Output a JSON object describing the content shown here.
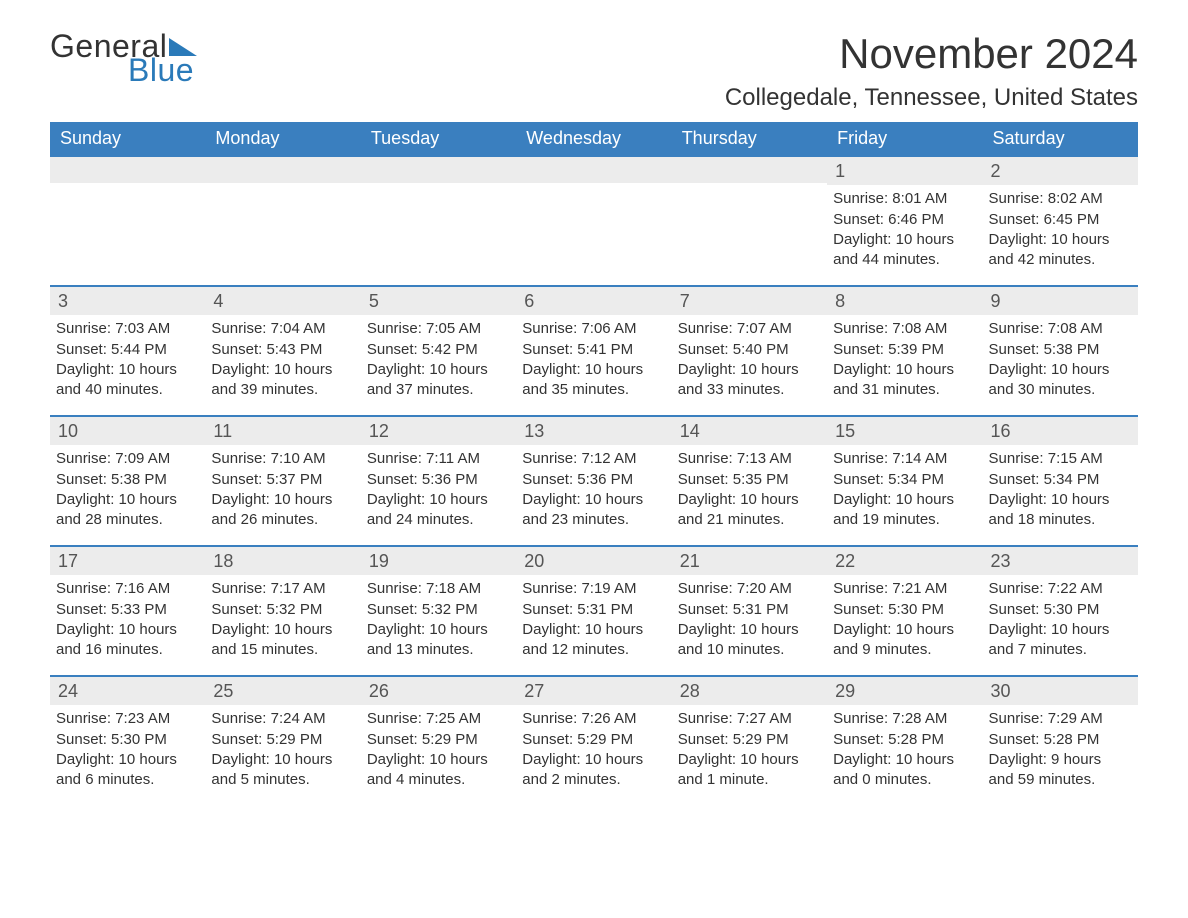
{
  "logo": {
    "word1": "General",
    "word2": "Blue"
  },
  "title": "November 2024",
  "location": "Collegedale, Tennessee, United States",
  "colors": {
    "header_bg": "#3a7fbf",
    "header_text": "#ffffff",
    "divider": "#3a7fbf",
    "daybar_bg": "#ececec",
    "text": "#333333",
    "logo_accent": "#2a7ab9"
  },
  "weekdays": [
    "Sunday",
    "Monday",
    "Tuesday",
    "Wednesday",
    "Thursday",
    "Friday",
    "Saturday"
  ],
  "weeks": [
    [
      null,
      null,
      null,
      null,
      null,
      {
        "n": "1",
        "sunrise": "Sunrise: 8:01 AM",
        "sunset": "Sunset: 6:46 PM",
        "day1": "Daylight: 10 hours",
        "day2": "and 44 minutes."
      },
      {
        "n": "2",
        "sunrise": "Sunrise: 8:02 AM",
        "sunset": "Sunset: 6:45 PM",
        "day1": "Daylight: 10 hours",
        "day2": "and 42 minutes."
      }
    ],
    [
      {
        "n": "3",
        "sunrise": "Sunrise: 7:03 AM",
        "sunset": "Sunset: 5:44 PM",
        "day1": "Daylight: 10 hours",
        "day2": "and 40 minutes."
      },
      {
        "n": "4",
        "sunrise": "Sunrise: 7:04 AM",
        "sunset": "Sunset: 5:43 PM",
        "day1": "Daylight: 10 hours",
        "day2": "and 39 minutes."
      },
      {
        "n": "5",
        "sunrise": "Sunrise: 7:05 AM",
        "sunset": "Sunset: 5:42 PM",
        "day1": "Daylight: 10 hours",
        "day2": "and 37 minutes."
      },
      {
        "n": "6",
        "sunrise": "Sunrise: 7:06 AM",
        "sunset": "Sunset: 5:41 PM",
        "day1": "Daylight: 10 hours",
        "day2": "and 35 minutes."
      },
      {
        "n": "7",
        "sunrise": "Sunrise: 7:07 AM",
        "sunset": "Sunset: 5:40 PM",
        "day1": "Daylight: 10 hours",
        "day2": "and 33 minutes."
      },
      {
        "n": "8",
        "sunrise": "Sunrise: 7:08 AM",
        "sunset": "Sunset: 5:39 PM",
        "day1": "Daylight: 10 hours",
        "day2": "and 31 minutes."
      },
      {
        "n": "9",
        "sunrise": "Sunrise: 7:08 AM",
        "sunset": "Sunset: 5:38 PM",
        "day1": "Daylight: 10 hours",
        "day2": "and 30 minutes."
      }
    ],
    [
      {
        "n": "10",
        "sunrise": "Sunrise: 7:09 AM",
        "sunset": "Sunset: 5:38 PM",
        "day1": "Daylight: 10 hours",
        "day2": "and 28 minutes."
      },
      {
        "n": "11",
        "sunrise": "Sunrise: 7:10 AM",
        "sunset": "Sunset: 5:37 PM",
        "day1": "Daylight: 10 hours",
        "day2": "and 26 minutes."
      },
      {
        "n": "12",
        "sunrise": "Sunrise: 7:11 AM",
        "sunset": "Sunset: 5:36 PM",
        "day1": "Daylight: 10 hours",
        "day2": "and 24 minutes."
      },
      {
        "n": "13",
        "sunrise": "Sunrise: 7:12 AM",
        "sunset": "Sunset: 5:36 PM",
        "day1": "Daylight: 10 hours",
        "day2": "and 23 minutes."
      },
      {
        "n": "14",
        "sunrise": "Sunrise: 7:13 AM",
        "sunset": "Sunset: 5:35 PM",
        "day1": "Daylight: 10 hours",
        "day2": "and 21 minutes."
      },
      {
        "n": "15",
        "sunrise": "Sunrise: 7:14 AM",
        "sunset": "Sunset: 5:34 PM",
        "day1": "Daylight: 10 hours",
        "day2": "and 19 minutes."
      },
      {
        "n": "16",
        "sunrise": "Sunrise: 7:15 AM",
        "sunset": "Sunset: 5:34 PM",
        "day1": "Daylight: 10 hours",
        "day2": "and 18 minutes."
      }
    ],
    [
      {
        "n": "17",
        "sunrise": "Sunrise: 7:16 AM",
        "sunset": "Sunset: 5:33 PM",
        "day1": "Daylight: 10 hours",
        "day2": "and 16 minutes."
      },
      {
        "n": "18",
        "sunrise": "Sunrise: 7:17 AM",
        "sunset": "Sunset: 5:32 PM",
        "day1": "Daylight: 10 hours",
        "day2": "and 15 minutes."
      },
      {
        "n": "19",
        "sunrise": "Sunrise: 7:18 AM",
        "sunset": "Sunset: 5:32 PM",
        "day1": "Daylight: 10 hours",
        "day2": "and 13 minutes."
      },
      {
        "n": "20",
        "sunrise": "Sunrise: 7:19 AM",
        "sunset": "Sunset: 5:31 PM",
        "day1": "Daylight: 10 hours",
        "day2": "and 12 minutes."
      },
      {
        "n": "21",
        "sunrise": "Sunrise: 7:20 AM",
        "sunset": "Sunset: 5:31 PM",
        "day1": "Daylight: 10 hours",
        "day2": "and 10 minutes."
      },
      {
        "n": "22",
        "sunrise": "Sunrise: 7:21 AM",
        "sunset": "Sunset: 5:30 PM",
        "day1": "Daylight: 10 hours",
        "day2": "and 9 minutes."
      },
      {
        "n": "23",
        "sunrise": "Sunrise: 7:22 AM",
        "sunset": "Sunset: 5:30 PM",
        "day1": "Daylight: 10 hours",
        "day2": "and 7 minutes."
      }
    ],
    [
      {
        "n": "24",
        "sunrise": "Sunrise: 7:23 AM",
        "sunset": "Sunset: 5:30 PM",
        "day1": "Daylight: 10 hours",
        "day2": "and 6 minutes."
      },
      {
        "n": "25",
        "sunrise": "Sunrise: 7:24 AM",
        "sunset": "Sunset: 5:29 PM",
        "day1": "Daylight: 10 hours",
        "day2": "and 5 minutes."
      },
      {
        "n": "26",
        "sunrise": "Sunrise: 7:25 AM",
        "sunset": "Sunset: 5:29 PM",
        "day1": "Daylight: 10 hours",
        "day2": "and 4 minutes."
      },
      {
        "n": "27",
        "sunrise": "Sunrise: 7:26 AM",
        "sunset": "Sunset: 5:29 PM",
        "day1": "Daylight: 10 hours",
        "day2": "and 2 minutes."
      },
      {
        "n": "28",
        "sunrise": "Sunrise: 7:27 AM",
        "sunset": "Sunset: 5:29 PM",
        "day1": "Daylight: 10 hours",
        "day2": "and 1 minute."
      },
      {
        "n": "29",
        "sunrise": "Sunrise: 7:28 AM",
        "sunset": "Sunset: 5:28 PM",
        "day1": "Daylight: 10 hours",
        "day2": "and 0 minutes."
      },
      {
        "n": "30",
        "sunrise": "Sunrise: 7:29 AM",
        "sunset": "Sunset: 5:28 PM",
        "day1": "Daylight: 9 hours",
        "day2": "and 59 minutes."
      }
    ]
  ]
}
